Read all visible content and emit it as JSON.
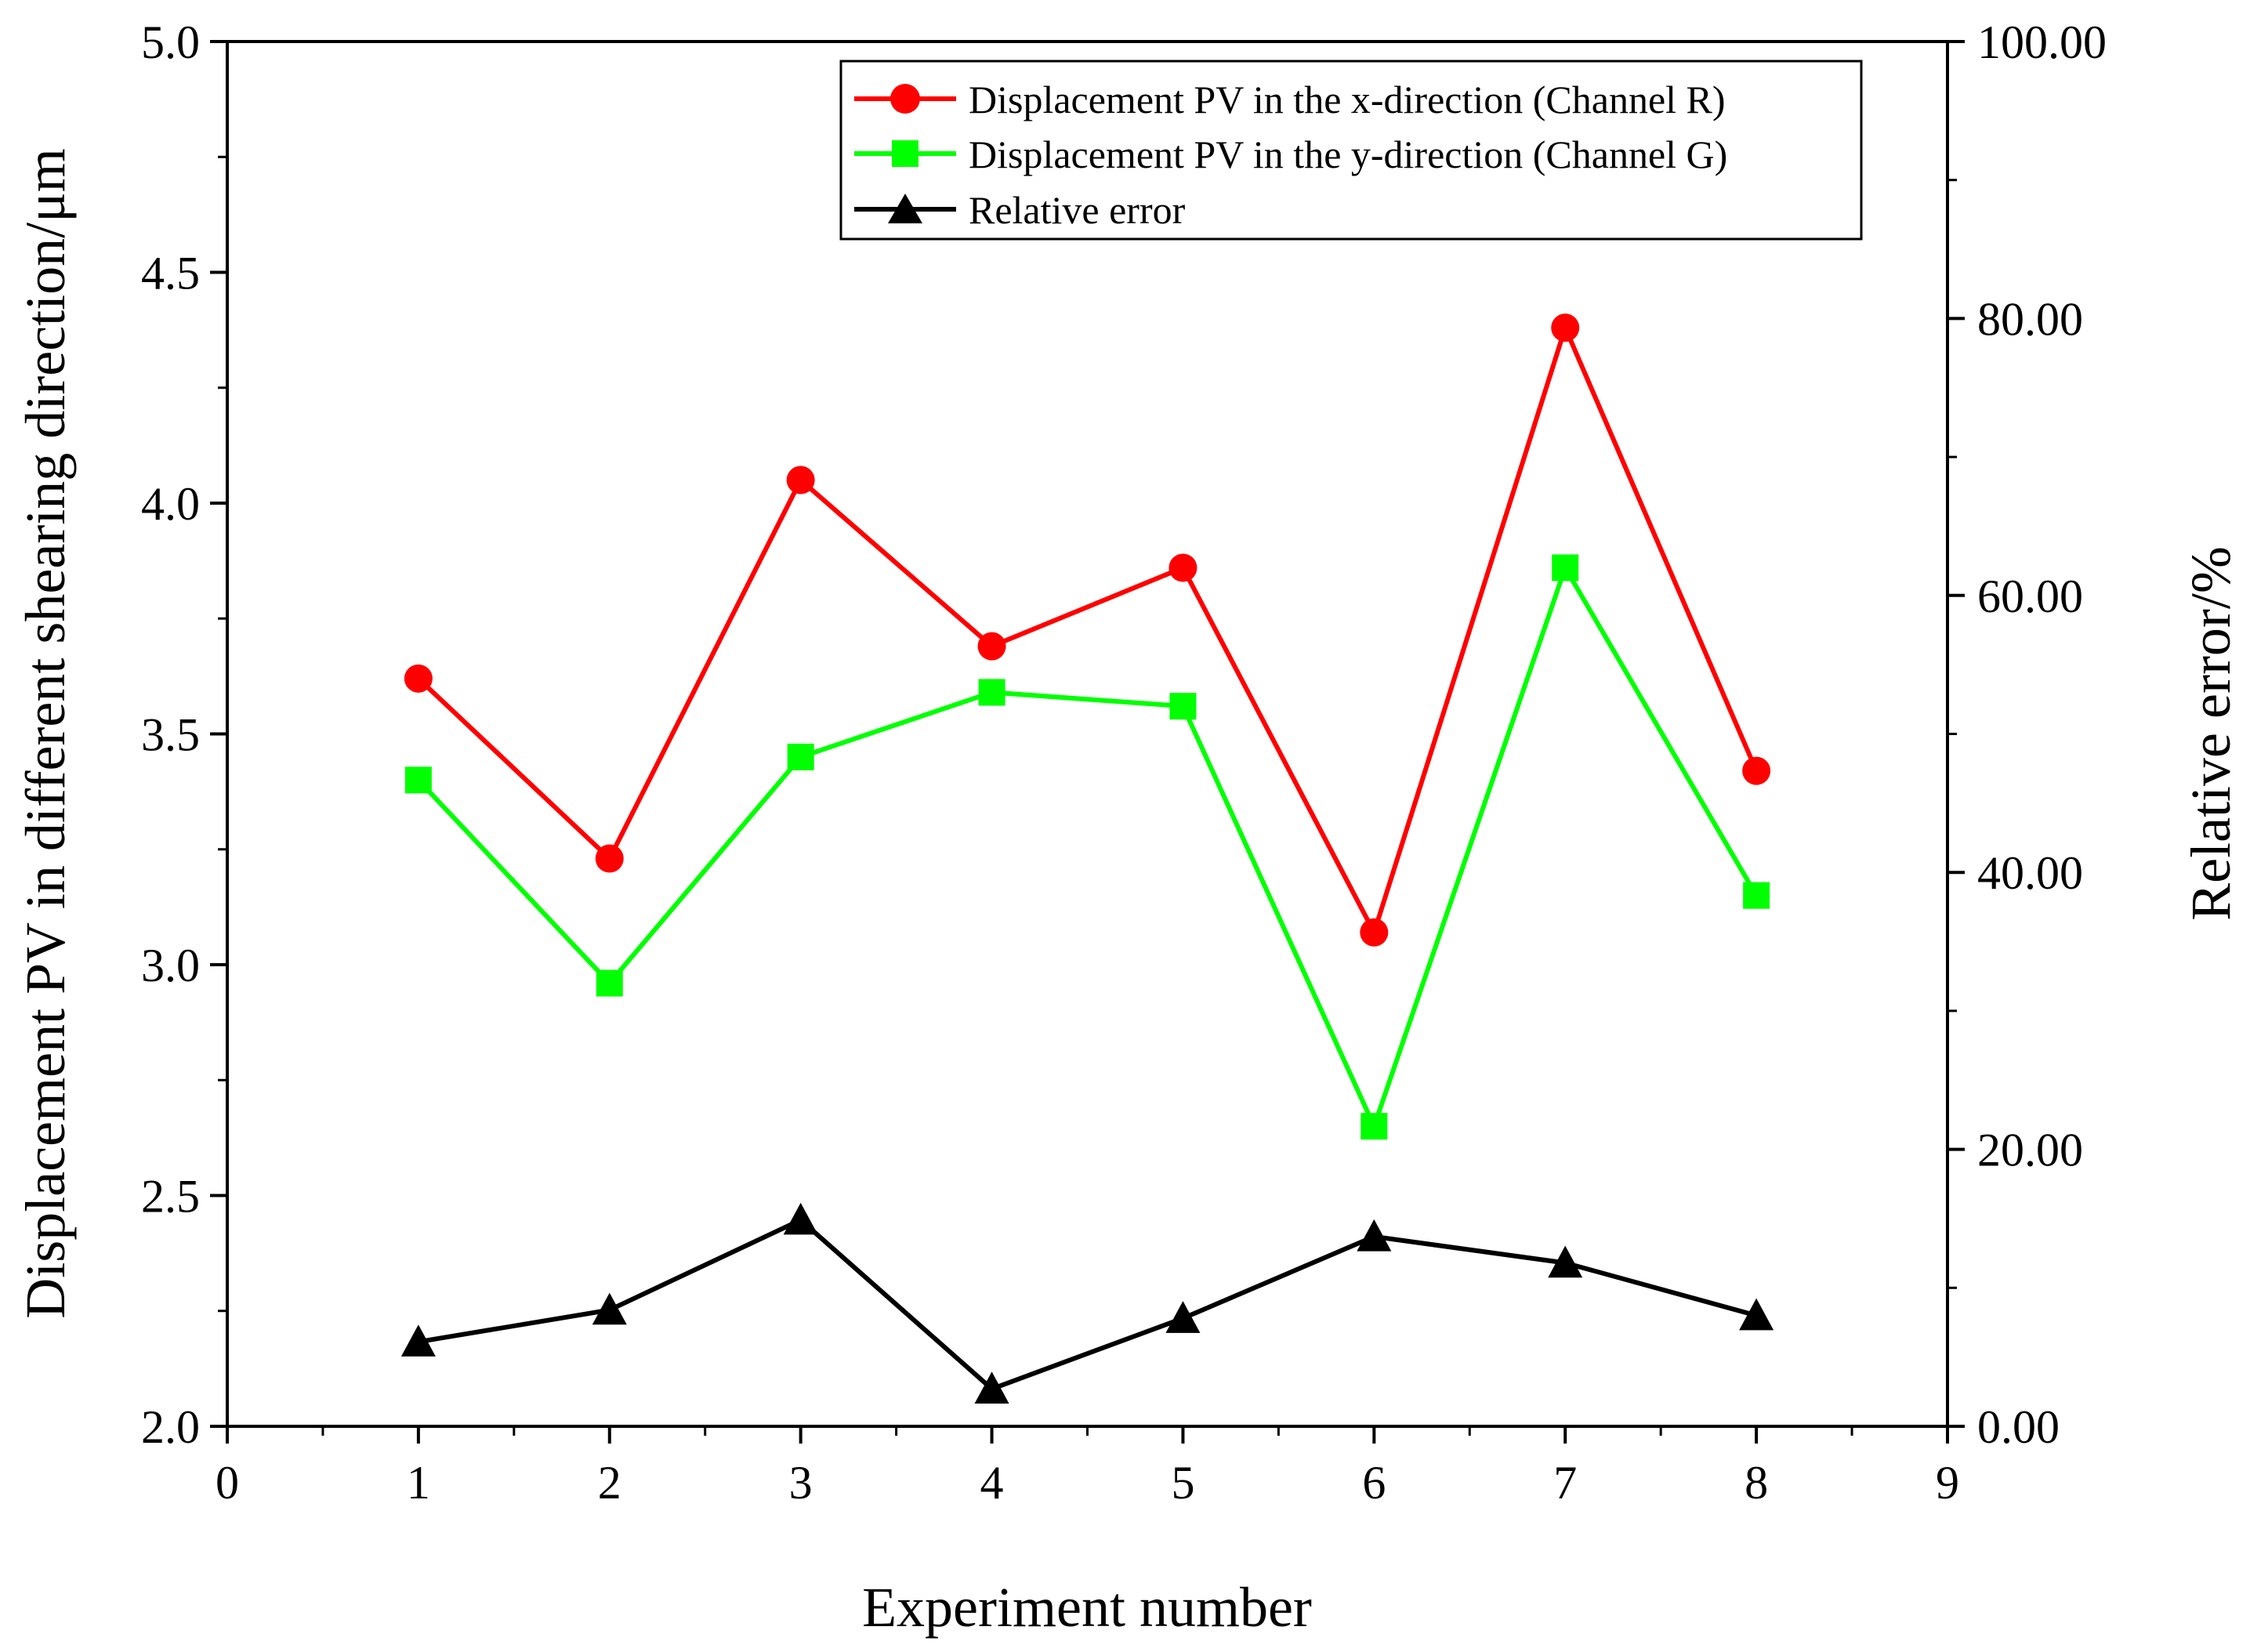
{
  "chart_data": {
    "type": "line",
    "title": "",
    "xlabel": "Experiment number",
    "ylabel": "Displacement PV in different shearing direction/μm",
    "y2label": "Relative error/%",
    "xlim": [
      0,
      9
    ],
    "ylim": [
      2.0,
      5.0
    ],
    "y2lim": [
      0,
      100
    ],
    "x_ticks": [
      "0",
      "1",
      "2",
      "3",
      "4",
      "5",
      "6",
      "7",
      "8",
      "9"
    ],
    "y_ticks": [
      "2.0",
      "2.5",
      "3.0",
      "3.5",
      "4.0",
      "4.5",
      "5.0"
    ],
    "y2_ticks": [
      "0.00",
      "20.00",
      "40.00",
      "60.00",
      "80.00",
      "100.00"
    ],
    "legend_position": "top-right",
    "x": [
      1,
      2,
      3,
      4,
      5,
      6,
      7,
      8
    ],
    "series": [
      {
        "name": "Displacement PV in the x-direction (Channel R)",
        "axis": "left",
        "color": "#ff0000",
        "marker": "circle",
        "values": [
          3.62,
          3.23,
          4.05,
          3.69,
          3.86,
          3.07,
          4.38,
          3.42
        ]
      },
      {
        "name": "Displacement PV in the y-direction (Channel G)",
        "axis": "left",
        "color": "#00ff00",
        "marker": "square",
        "values": [
          3.4,
          2.96,
          3.45,
          3.59,
          3.56,
          2.65,
          3.86,
          3.15
        ]
      },
      {
        "name": "Relative error",
        "axis": "right",
        "color": "#000000",
        "marker": "triangle",
        "values": [
          6.1,
          8.4,
          14.9,
          2.7,
          7.8,
          13.7,
          11.8,
          8.0
        ]
      }
    ]
  }
}
